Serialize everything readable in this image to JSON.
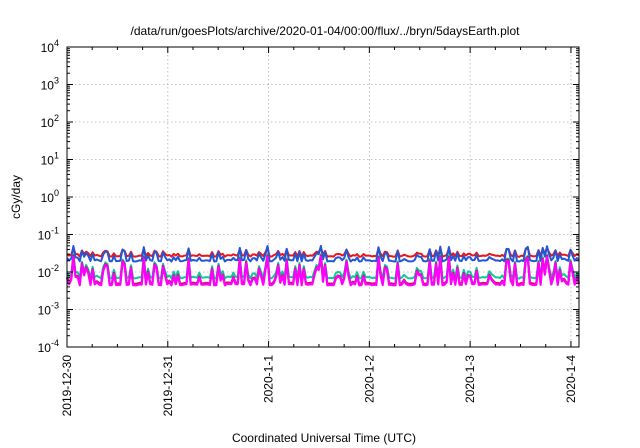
{
  "chart_data": {
    "type": "line",
    "title": "/data/run/goesPlots/archive/2020-01-04/00:00/flux/../bryn/5daysEarth.plot",
    "xlabel": "Coordinated Universal Time (UTC)",
    "ylabel": "cGy/day",
    "log_y": true,
    "ylim_exp": [
      -4,
      4
    ],
    "y_tick_base": "10",
    "y_tick_exponents": [
      "-4",
      "-3",
      "-2",
      "-1",
      "0",
      "1",
      "2",
      "3",
      "4"
    ],
    "x_tick_labels": [
      "2019-12-30",
      "2019-12-31",
      "2020-1-1",
      "2020-1-2",
      "2020-1-3",
      "2020-1-4"
    ],
    "x_range_days": [
      0,
      5.08
    ],
    "grid": true,
    "legend": "none",
    "series": [
      {
        "color": "#e8151b",
        "base": 0.028,
        "low": 0.022,
        "high": 0.045,
        "wiggle": 0.35
      },
      {
        "color": "#2356d6",
        "base": 0.021,
        "low": 0.016,
        "high": 0.05,
        "wiggle": 0.45
      },
      {
        "color": "#13c4a0",
        "base": 0.0075,
        "low": 0.0055,
        "high": 0.03,
        "wiggle": 0.6
      },
      {
        "color": "#c2185b",
        "base": 0.0052,
        "low": 0.0042,
        "high": 0.028,
        "wiggle": 0.8
      },
      {
        "color": "#ff00ff",
        "base": 0.0048,
        "low": 0.0038,
        "high": 0.026,
        "wiggle": 0.85
      }
    ]
  }
}
